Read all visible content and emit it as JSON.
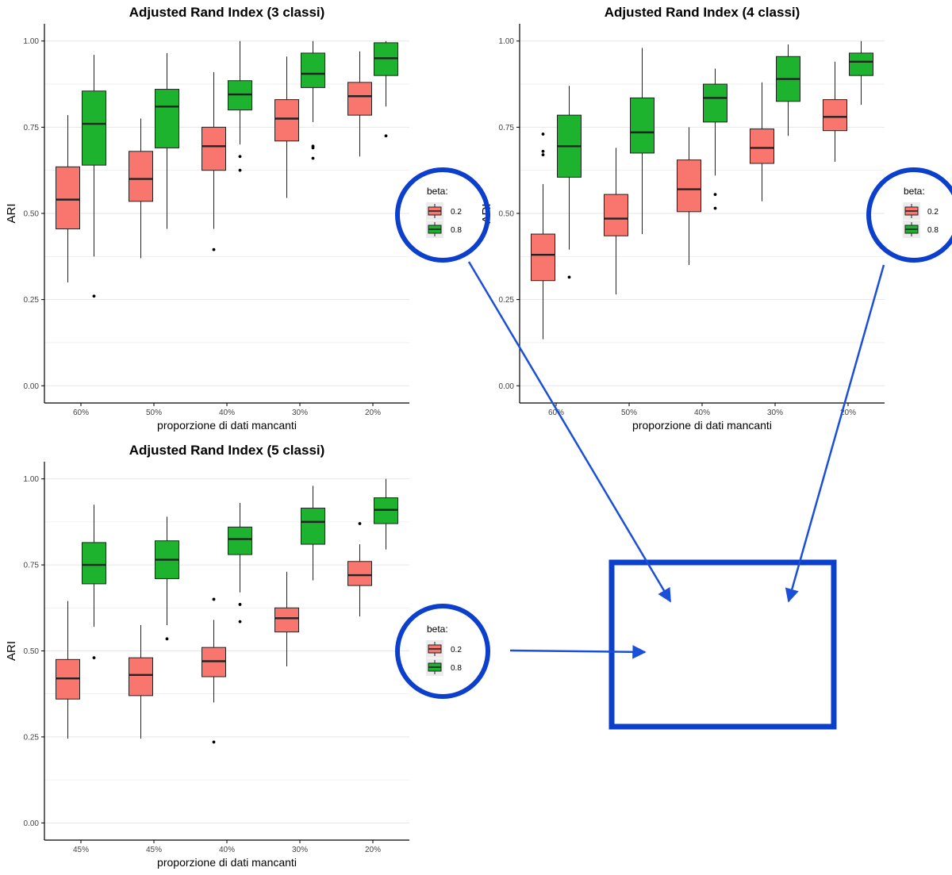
{
  "colors": {
    "red_fill": "#F8766D",
    "green_fill": "#1DB32E",
    "box_stroke": "#222222",
    "axis_line": "#000000",
    "grid": "#E6E6E6",
    "annotation_blue": "#0B3FCC",
    "arrow_blue": "#1A4FD8",
    "legend_key_bg": "#EBEBEB"
  },
  "legend": {
    "title": "beta:",
    "entries": [
      {
        "label": "0.2",
        "color": "#F8766D"
      },
      {
        "label": "0.8",
        "color": "#1DB32E"
      }
    ]
  },
  "chart_data": [
    {
      "type": "box",
      "title": "Adjusted Rand Index (3 classi)",
      "xlabel": "proporzione di dati mancanti",
      "ylabel": "ARI",
      "ylim": [
        -0.05,
        1.05
      ],
      "yticks": [
        "0.00",
        "0.25",
        "0.50",
        "0.75",
        "1.00"
      ],
      "categories": [
        "60%",
        "50%",
        "40%",
        "30%",
        "20%"
      ],
      "legend_placement": "right",
      "series": [
        {
          "name": "0.2",
          "boxes": [
            {
              "min": 0.3,
              "q1": 0.455,
              "median": 0.54,
              "q3": 0.635,
              "max": 0.785,
              "outliers": []
            },
            {
              "min": 0.37,
              "q1": 0.535,
              "median": 0.6,
              "q3": 0.68,
              "max": 0.775,
              "outliers": []
            },
            {
              "min": 0.455,
              "q1": 0.625,
              "median": 0.695,
              "q3": 0.75,
              "max": 0.91,
              "outliers": [
                0.395
              ]
            },
            {
              "min": 0.545,
              "q1": 0.71,
              "median": 0.775,
              "q3": 0.83,
              "max": 0.955,
              "outliers": []
            },
            {
              "min": 0.665,
              "q1": 0.785,
              "median": 0.84,
              "q3": 0.88,
              "max": 0.97,
              "outliers": []
            }
          ]
        },
        {
          "name": "0.8",
          "boxes": [
            {
              "min": 0.375,
              "q1": 0.64,
              "median": 0.76,
              "q3": 0.855,
              "max": 0.96,
              "outliers": [
                0.26
              ]
            },
            {
              "min": 0.455,
              "q1": 0.69,
              "median": 0.81,
              "q3": 0.86,
              "max": 0.965,
              "outliers": []
            },
            {
              "min": 0.7,
              "q1": 0.8,
              "median": 0.845,
              "q3": 0.885,
              "max": 1.0,
              "outliers": [
                0.625,
                0.665
              ]
            },
            {
              "min": 0.765,
              "q1": 0.865,
              "median": 0.905,
              "q3": 0.965,
              "max": 1.0,
              "outliers": [
                0.66,
                0.69,
                0.695
              ]
            },
            {
              "min": 0.81,
              "q1": 0.9,
              "median": 0.95,
              "q3": 0.995,
              "max": 1.0,
              "outliers": [
                0.725
              ]
            }
          ]
        }
      ]
    },
    {
      "type": "box",
      "title": "Adjusted Rand Index (4 classi)",
      "xlabel": "proporzione di dati mancanti",
      "ylabel": "ARI",
      "ylim": [
        -0.05,
        1.05
      ],
      "yticks": [
        "0.00",
        "0.25",
        "0.50",
        "0.75",
        "1.00"
      ],
      "categories": [
        "60%",
        "50%",
        "40%",
        "30%",
        "20%"
      ],
      "legend_placement": "right",
      "series": [
        {
          "name": "0.2",
          "boxes": [
            {
              "min": 0.135,
              "q1": 0.305,
              "median": 0.38,
              "q3": 0.44,
              "max": 0.585,
              "outliers": [
                0.67,
                0.68,
                0.73
              ]
            },
            {
              "min": 0.265,
              "q1": 0.435,
              "median": 0.485,
              "q3": 0.555,
              "max": 0.69,
              "outliers": []
            },
            {
              "min": 0.35,
              "q1": 0.505,
              "median": 0.57,
              "q3": 0.655,
              "max": 0.75,
              "outliers": []
            },
            {
              "min": 0.535,
              "q1": 0.645,
              "median": 0.69,
              "q3": 0.745,
              "max": 0.88,
              "outliers": []
            },
            {
              "min": 0.65,
              "q1": 0.74,
              "median": 0.78,
              "q3": 0.83,
              "max": 0.94,
              "outliers": []
            }
          ]
        },
        {
          "name": "0.8",
          "boxes": [
            {
              "min": 0.395,
              "q1": 0.605,
              "median": 0.695,
              "q3": 0.785,
              "max": 0.87,
              "outliers": [
                0.315
              ]
            },
            {
              "min": 0.44,
              "q1": 0.675,
              "median": 0.735,
              "q3": 0.835,
              "max": 0.98,
              "outliers": []
            },
            {
              "min": 0.61,
              "q1": 0.765,
              "median": 0.835,
              "q3": 0.875,
              "max": 0.92,
              "outliers": [
                0.515,
                0.555
              ]
            },
            {
              "min": 0.725,
              "q1": 0.825,
              "median": 0.89,
              "q3": 0.955,
              "max": 0.99,
              "outliers": []
            },
            {
              "min": 0.815,
              "q1": 0.9,
              "median": 0.94,
              "q3": 0.965,
              "max": 1.0,
              "outliers": []
            }
          ]
        }
      ]
    },
    {
      "type": "box",
      "title": "Adjusted Rand Index (5 classi)",
      "xlabel": "proporzione di dati mancanti",
      "ylabel": "ARI",
      "ylim": [
        -0.05,
        1.05
      ],
      "yticks": [
        "0.00",
        "0.25",
        "0.50",
        "0.75",
        "1.00"
      ],
      "categories": [
        "45%",
        "45%",
        "40%",
        "30%",
        "20%"
      ],
      "legend_placement": "right",
      "series": [
        {
          "name": "0.2",
          "boxes": [
            {
              "min": 0.245,
              "q1": 0.36,
              "median": 0.42,
              "q3": 0.475,
              "max": 0.645,
              "outliers": []
            },
            {
              "min": 0.245,
              "q1": 0.37,
              "median": 0.43,
              "q3": 0.48,
              "max": 0.575,
              "outliers": []
            },
            {
              "min": 0.35,
              "q1": 0.425,
              "median": 0.47,
              "q3": 0.51,
              "max": 0.59,
              "outliers": [
                0.235,
                0.65
              ]
            },
            {
              "min": 0.455,
              "q1": 0.555,
              "median": 0.595,
              "q3": 0.625,
              "max": 0.73,
              "outliers": []
            },
            {
              "min": 0.6,
              "q1": 0.69,
              "median": 0.72,
              "q3": 0.76,
              "max": 0.81,
              "outliers": [
                0.87
              ]
            }
          ]
        },
        {
          "name": "0.8",
          "boxes": [
            {
              "min": 0.57,
              "q1": 0.695,
              "median": 0.75,
              "q3": 0.815,
              "max": 0.925,
              "outliers": [
                0.48
              ]
            },
            {
              "min": 0.575,
              "q1": 0.71,
              "median": 0.765,
              "q3": 0.82,
              "max": 0.89,
              "outliers": [
                0.535
              ]
            },
            {
              "min": 0.67,
              "q1": 0.78,
              "median": 0.825,
              "q3": 0.86,
              "max": 0.93,
              "outliers": [
                0.585,
                0.635
              ]
            },
            {
              "min": 0.705,
              "q1": 0.81,
              "median": 0.875,
              "q3": 0.915,
              "max": 0.98,
              "outliers": []
            },
            {
              "min": 0.795,
              "q1": 0.87,
              "median": 0.91,
              "q3": 0.945,
              "max": 1.0,
              "outliers": []
            }
          ]
        }
      ]
    }
  ]
}
